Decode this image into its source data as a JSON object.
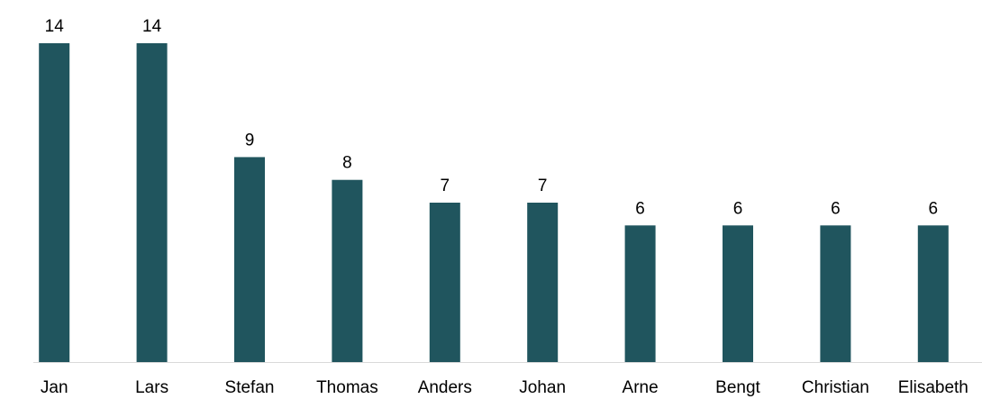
{
  "chart_data": {
    "type": "bar",
    "categories": [
      "Jan",
      "Lars",
      "Stefan",
      "Thomas",
      "Anders",
      "Johan",
      "Arne",
      "Bengt",
      "Christian",
      "Elisabeth"
    ],
    "values": [
      14,
      14,
      9,
      8,
      7,
      7,
      6,
      6,
      6,
      6
    ],
    "ylim": [
      0,
      14
    ],
    "grid": false,
    "data_labels": true,
    "colors": {
      "bar": "#20555e",
      "axis": "#d9d9d9",
      "text": "#000000"
    }
  }
}
